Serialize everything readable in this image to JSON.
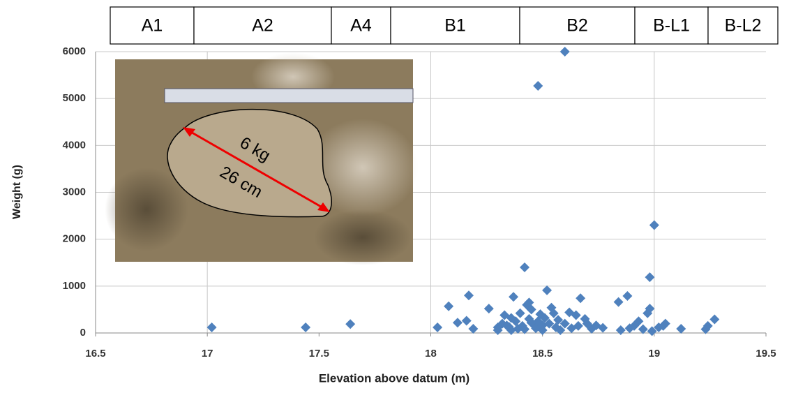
{
  "chart_data": {
    "type": "scatter",
    "zones": [
      "A1",
      "A2",
      "A4",
      "B1",
      "B2",
      "B-L1",
      "B-L2"
    ],
    "annotations": [
      "6 kg",
      "26 cm"
    ],
    "x_label": "Elevation above datum (m)",
    "y_label": "Weight (g)",
    "xlim": [
      16.5,
      19.5
    ],
    "xticks": [
      16.5,
      17,
      17.5,
      18,
      18.5,
      19,
      19.5
    ],
    "ylim": [
      0,
      6000
    ],
    "yticks": [
      0,
      1000,
      2000,
      3000,
      4000,
      5000,
      6000
    ],
    "grid": true,
    "color": "#4f81bd",
    "x": [
      17.02,
      17.44,
      17.64,
      18.6,
      18.48,
      19.0,
      18.98,
      18.42,
      18.52,
      18.03,
      18.08,
      18.12,
      18.17,
      18.16,
      18.19,
      18.26,
      18.3,
      18.32,
      18.33,
      18.35,
      18.36,
      18.37,
      18.38,
      18.4,
      18.41,
      18.42,
      18.43,
      18.44,
      18.44,
      18.45,
      18.46,
      18.47,
      18.48,
      18.49,
      18.5,
      18.5,
      18.51,
      18.53,
      18.54,
      18.55,
      18.56,
      18.57,
      18.58,
      18.6,
      18.62,
      18.63,
      18.65,
      18.66,
      18.67,
      18.69,
      18.7,
      18.72,
      18.74,
      18.77,
      18.84,
      18.85,
      18.88,
      18.89,
      18.91,
      18.93,
      18.95,
      18.97,
      18.98,
      18.99,
      19.02,
      19.04,
      19.05,
      19.12,
      19.23,
      19.24,
      19.27,
      18.34,
      18.39,
      18.45,
      18.3,
      18.36
    ],
    "values": [
      120,
      120,
      190,
      6000,
      5270,
      2300,
      1190,
      1400,
      910,
      120,
      570,
      220,
      800,
      260,
      90,
      520,
      120,
      200,
      380,
      130,
      60,
      770,
      250,
      420,
      150,
      80,
      600,
      650,
      300,
      500,
      180,
      100,
      250,
      400,
      160,
      60,
      320,
      200,
      540,
      420,
      120,
      280,
      60,
      200,
      440,
      100,
      380,
      150,
      740,
      300,
      200,
      90,
      160,
      110,
      660,
      60,
      790,
      100,
      150,
      250,
      80,
      420,
      520,
      40,
      120,
      150,
      200,
      90,
      80,
      150,
      290,
      160,
      90,
      220,
      60,
      320
    ]
  }
}
